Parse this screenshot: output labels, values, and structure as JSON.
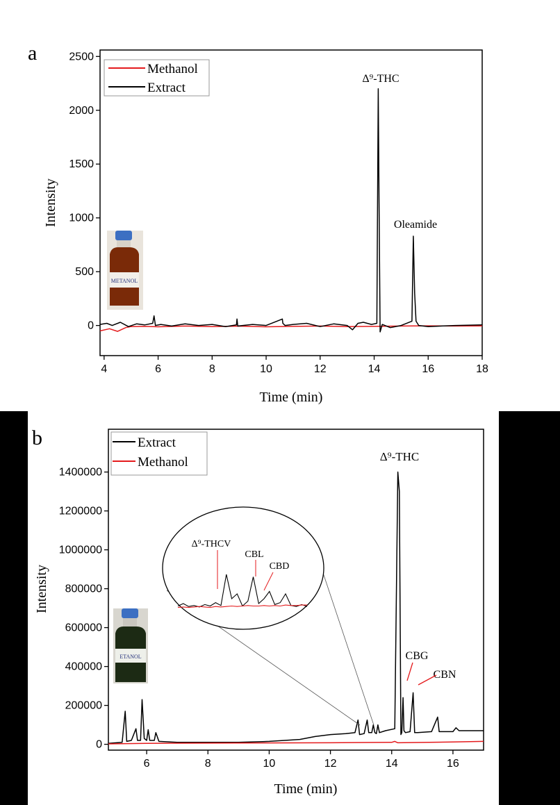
{
  "colors": {
    "methanol": "#e41a1c",
    "extract": "#000000",
    "frame": "#000000",
    "side_bars": "#000000"
  },
  "chart_data": [
    {
      "panel_label": "a",
      "type": "line",
      "title": "",
      "xlabel": "Time (min)",
      "ylabel": "Intensity",
      "xlim": [
        3.85,
        18
      ],
      "ylim": [
        -280,
        2560
      ],
      "xticks": [
        4,
        6,
        8,
        10,
        12,
        14,
        16,
        18
      ],
      "yticks": [
        0,
        500,
        1000,
        1500,
        2000,
        2500
      ],
      "legend_position": "top-left",
      "series": [
        {
          "name": "Methanol",
          "color": "#e41a1c",
          "x": [
            3.85,
            4.2,
            4.5,
            4.8,
            5.0,
            5.5,
            6.0,
            7.0,
            8.0,
            9.0,
            10.0,
            11.0,
            12.0,
            13.0,
            14.0,
            15.0,
            16.0,
            17.0,
            18.0
          ],
          "y": [
            -50,
            -30,
            -55,
            -20,
            -10,
            -8,
            -12,
            -5,
            -10,
            -6,
            -12,
            -8,
            -5,
            -10,
            -8,
            -5,
            -3,
            -5,
            -4
          ]
        },
        {
          "name": "Extract",
          "color": "#000000",
          "x": [
            3.85,
            4.1,
            4.3,
            4.6,
            4.9,
            5.2,
            5.5,
            5.8,
            5.85,
            5.9,
            6.1,
            6.5,
            7.0,
            7.5,
            8.0,
            8.5,
            8.9,
            8.92,
            8.95,
            9.5,
            10.0,
            10.4,
            10.6,
            10.62,
            10.7,
            11.0,
            11.5,
            12.0,
            12.5,
            13.0,
            13.2,
            13.4,
            13.6,
            13.9,
            14.1,
            14.15,
            14.18,
            14.22,
            14.3,
            14.6,
            15.0,
            15.4,
            15.45,
            15.5,
            15.55,
            15.65,
            16.0,
            17.0,
            18.0
          ],
          "y": [
            10,
            20,
            0,
            30,
            -10,
            15,
            5,
            20,
            90,
            0,
            10,
            -5,
            15,
            0,
            10,
            -10,
            5,
            60,
            -5,
            10,
            0,
            40,
            60,
            20,
            0,
            10,
            20,
            -10,
            15,
            0,
            -40,
            20,
            30,
            10,
            20,
            2200,
            1200,
            -60,
            10,
            -20,
            0,
            40,
            830,
            300,
            40,
            0,
            -10,
            0,
            5
          ]
        }
      ],
      "annotations": [
        {
          "text": "Δ⁹-THC",
          "x": 14.15,
          "y": 2200
        },
        {
          "text": "Oleamide",
          "x": 15.5,
          "y": 830
        }
      ],
      "inset_photo_label": "METANOL"
    },
    {
      "panel_label": "b",
      "type": "line",
      "title": "",
      "xlabel": "Time (min)",
      "ylabel": "Intensity",
      "xlim": [
        4.75,
        17
      ],
      "ylim": [
        -30000,
        1620000
      ],
      "xticks": [
        6,
        8,
        10,
        12,
        14,
        16
      ],
      "yticks": [
        0,
        200000,
        400000,
        600000,
        800000,
        1000000,
        1200000,
        1400000
      ],
      "legend_position": "top-left",
      "series": [
        {
          "name": "Extract",
          "color": "#000000",
          "x": [
            4.75,
            5.2,
            5.3,
            5.35,
            5.5,
            5.65,
            5.7,
            5.8,
            5.85,
            5.92,
            6.0,
            6.05,
            6.1,
            6.25,
            6.3,
            6.4,
            7.0,
            8.0,
            9.0,
            10.0,
            11.0,
            11.5,
            12.0,
            12.5,
            12.8,
            12.9,
            12.95,
            13.1,
            13.2,
            13.25,
            13.35,
            13.4,
            13.45,
            13.5,
            13.55,
            13.6,
            13.8,
            14.1,
            14.2,
            14.25,
            14.3,
            14.33,
            14.37,
            14.4,
            14.45,
            14.6,
            14.7,
            14.75,
            14.85,
            15.3,
            15.5,
            15.55,
            16.0,
            16.1,
            16.2,
            17.0
          ],
          "y": [
            5000,
            10000,
            170000,
            15000,
            20000,
            80000,
            20000,
            20000,
            230000,
            30000,
            20000,
            75000,
            20000,
            20000,
            60000,
            15000,
            10000,
            10000,
            10000,
            15000,
            25000,
            40000,
            50000,
            55000,
            60000,
            125000,
            50000,
            55000,
            125000,
            60000,
            60000,
            100000,
            60000,
            55000,
            100000,
            60000,
            70000,
            80000,
            1400000,
            1300000,
            50000,
            60000,
            240000,
            70000,
            60000,
            65000,
            265000,
            60000,
            60000,
            65000,
            140000,
            65000,
            65000,
            85000,
            70000,
            70000
          ]
        },
        {
          "name": "Methanol",
          "color": "#e41a1c",
          "x": [
            4.75,
            6.0,
            8.0,
            10.0,
            12.0,
            14.0,
            14.1,
            14.2,
            16.0,
            17.0
          ],
          "y": [
            2000,
            5000,
            6000,
            7000,
            8000,
            10000,
            15000,
            8000,
            12000,
            15000
          ]
        }
      ],
      "annotations": [
        {
          "text": "Δ⁹-THC",
          "x": 14.25,
          "y": 1400000
        },
        {
          "text": "CBG",
          "x": 14.37,
          "y": 240000
        },
        {
          "text": "CBN",
          "x": 14.75,
          "y": 265000
        }
      ],
      "inset": {
        "labels": [
          "Δ⁹-THCV",
          "CBL",
          "CBD"
        ],
        "zoom_range_min": [
          12.9,
          13.6
        ],
        "extract_profile": [
          0.05,
          0.1,
          0.04,
          0.06,
          0.03,
          0.08,
          0.05,
          0.12,
          0.06,
          0.7,
          0.2,
          0.3,
          0.05,
          0.15,
          0.65,
          0.1,
          0.2,
          0.35,
          0.08,
          0.12,
          0.3,
          0.06,
          0.04,
          0.08,
          0.04
        ],
        "methanol_profile": [
          0.02,
          0.03,
          0.02,
          0.03,
          0.04,
          0.03,
          0.02,
          0.04,
          0.03,
          0.04,
          0.05,
          0.04,
          0.05,
          0.06,
          0.05,
          0.05,
          0.06,
          0.05,
          0.06,
          0.05,
          0.07,
          0.06,
          0.06,
          0.07,
          0.07
        ]
      },
      "inset_photo_label": "ETANOL"
    }
  ]
}
